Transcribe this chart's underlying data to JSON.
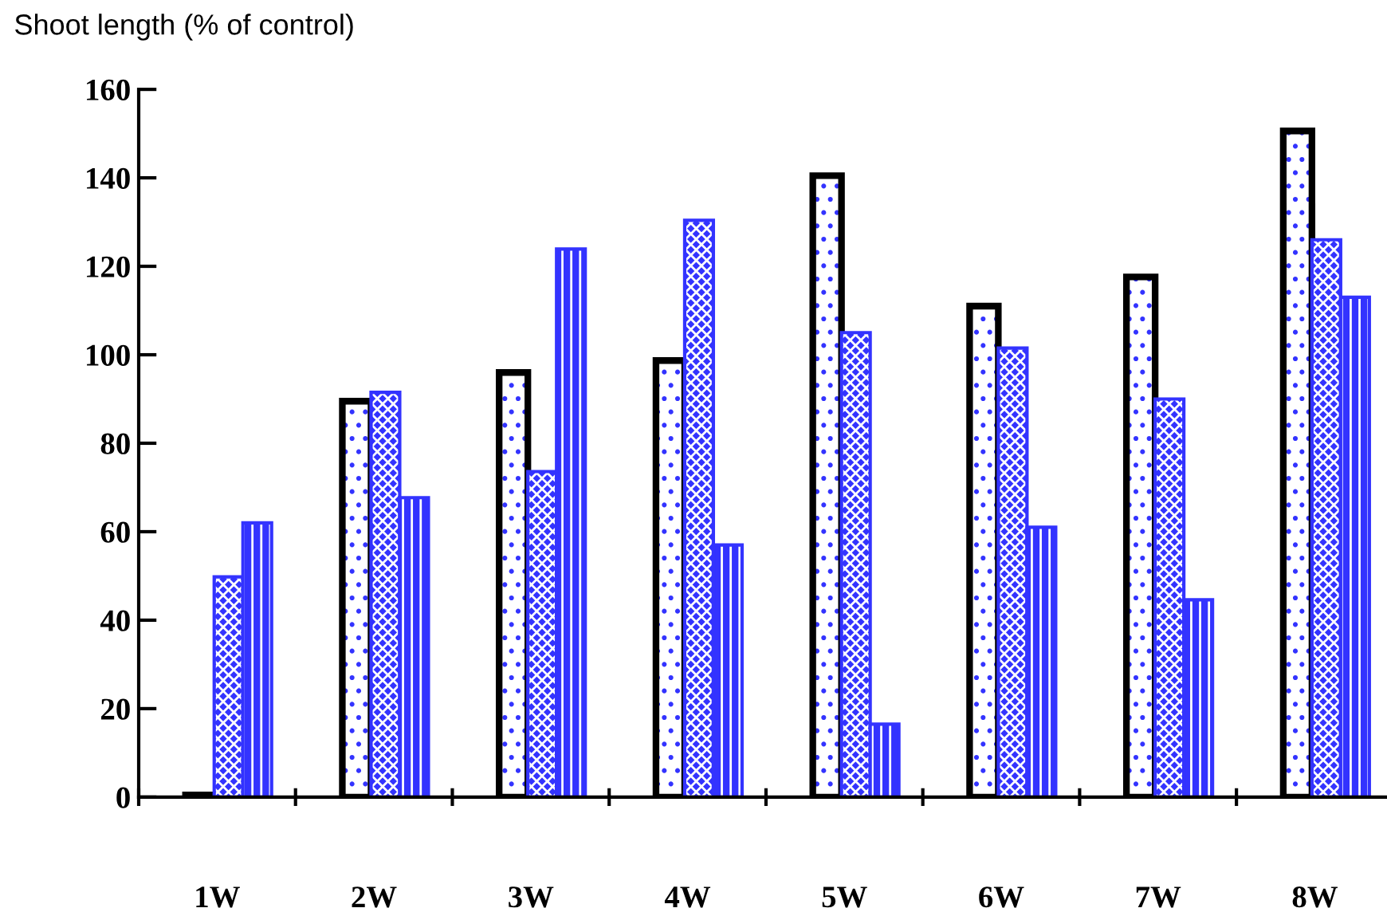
{
  "chart_data": {
    "type": "bar",
    "ylabel": "Shoot length (% of control)",
    "categories": [
      "1W",
      "2W",
      "3W",
      "4W",
      "5W",
      "6W",
      "7W",
      "8W"
    ],
    "series": [
      {
        "color": "#000000",
        "values": [
          0.5,
          89.5,
          96,
          98.7,
          140.5,
          111,
          117.6,
          150.6
        ]
      },
      {
        "color": "#3333ff",
        "values": [
          49.8,
          91.5,
          73.6,
          130.4,
          105,
          101.5,
          90,
          126
        ]
      },
      {
        "color": "#3333ff",
        "values": [
          62,
          67.7,
          123.9,
          57,
          16.5,
          61,
          44.6,
          113
        ]
      }
    ],
    "ylim": [
      0,
      160
    ],
    "yticks": [
      0,
      20,
      40,
      60,
      80,
      100,
      120,
      140,
      160
    ],
    "grid": false,
    "legend": false
  }
}
